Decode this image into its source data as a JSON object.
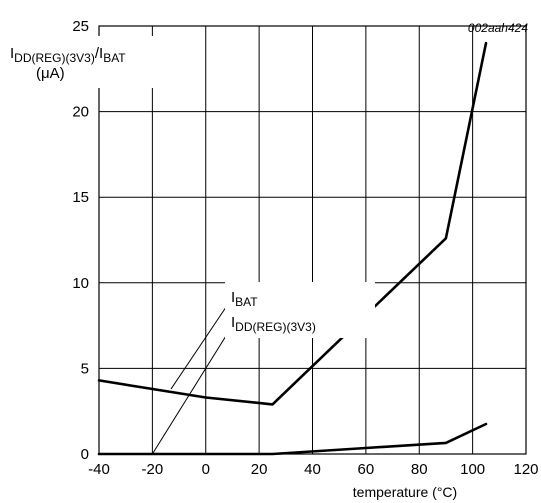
{
  "figure_id": "002aah424",
  "chart_data": {
    "type": "line",
    "ylabel": {
      "line1": [
        "I",
        "DD(REG)(3V3)",
        "/I",
        "BAT"
      ],
      "line2": "(μA)"
    },
    "xlabel": "temperature (°C)",
    "xlim": [
      -40,
      120
    ],
    "ylim": [
      0,
      25
    ],
    "x_ticks": [
      -40,
      -20,
      0,
      20,
      40,
      60,
      80,
      100,
      120
    ],
    "y_ticks": [
      0,
      5,
      10,
      15,
      20,
      25
    ],
    "grid": true,
    "series": [
      {
        "name": "IBAT",
        "label": [
          "I",
          "BAT"
        ],
        "x": [
          -40,
          0,
          25,
          90,
          105
        ],
        "y": [
          4.3,
          3.3,
          2.9,
          12.6,
          24.0
        ]
      },
      {
        "name": "IDD(REG)(3V3)",
        "label": [
          "I",
          "DD(REG)(3V3)"
        ],
        "x": [
          -40,
          25,
          60,
          90,
          105
        ],
        "y": [
          0.0,
          0.0,
          0.35,
          0.65,
          1.75
        ]
      }
    ],
    "annotations": [
      {
        "series": "IBAT",
        "from": [
          -13,
          3.8
        ],
        "to": [
          12,
          9.6
        ]
      },
      {
        "series": "IDD(REG)(3V3)",
        "from": [
          -20,
          0.0
        ],
        "to": [
          12,
          8.0
        ]
      }
    ]
  }
}
